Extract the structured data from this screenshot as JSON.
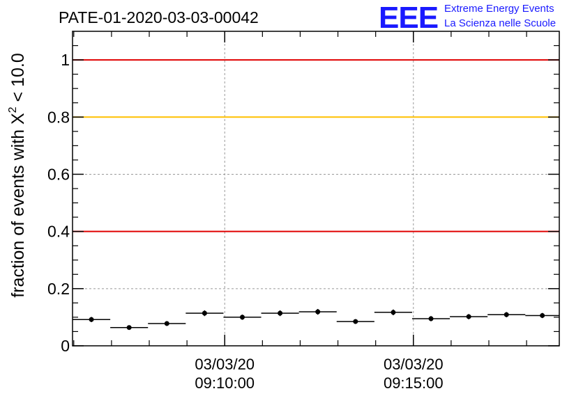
{
  "header": {
    "run_title": "PATE-01-2020-03-03-00042",
    "logo_text": "EEE",
    "org_line1": "Extreme Energy Events",
    "org_line2": "La Scienza nelle Scuole"
  },
  "colors": {
    "logo_blue": "#1a1aff",
    "threshold_red": "#e00000",
    "threshold_yellow": "#ffc000",
    "grid": "#999999",
    "data": "#000000"
  },
  "chart_data": {
    "type": "scatter",
    "title": "PATE-01-2020-03-03-00042",
    "ylabel_parts": {
      "prefix": "fraction of events with ",
      "symbol": "X",
      "sup": "2",
      "suffix": " < 10.0"
    },
    "xlabel": "",
    "ylim": [
      0,
      1.1
    ],
    "xlim": [
      "09:05:58",
      "09:18:52"
    ],
    "y_ticks": [
      {
        "value": 0,
        "label": "0"
      },
      {
        "value": 0.2,
        "label": "0.2"
      },
      {
        "value": 0.4,
        "label": "0.4"
      },
      {
        "value": 0.6,
        "label": "0.6"
      },
      {
        "value": 0.8,
        "label": "0.8"
      },
      {
        "value": 1,
        "label": "1"
      }
    ],
    "x_ticks": [
      {
        "time": "09:10:00",
        "date_label": "03/03/20",
        "time_label": "09:10:00"
      },
      {
        "time": "09:15:00",
        "date_label": "03/03/20",
        "time_label": "09:15:00"
      }
    ],
    "x_minor_tick_seconds": 60,
    "grid": true,
    "reference_lines": [
      {
        "y": 1.0,
        "color": "#e00000"
      },
      {
        "y": 0.8,
        "color": "#ffc000"
      },
      {
        "y": 0.4,
        "color": "#e00000"
      }
    ],
    "series": [
      {
        "points": [
          {
            "x_start": "09:05:58",
            "x_end": "09:06:58",
            "y": 0.092,
            "err": 0.009
          },
          {
            "x_start": "09:06:58",
            "x_end": "09:07:58",
            "y": 0.064,
            "err": 0.007
          },
          {
            "x_start": "09:07:58",
            "x_end": "09:08:58",
            "y": 0.078,
            "err": 0.008
          },
          {
            "x_start": "09:08:58",
            "x_end": "09:09:58",
            "y": 0.114,
            "err": 0.01
          },
          {
            "x_start": "09:09:58",
            "x_end": "09:10:58",
            "y": 0.1,
            "err": 0.009
          },
          {
            "x_start": "09:10:58",
            "x_end": "09:11:58",
            "y": 0.114,
            "err": 0.01
          },
          {
            "x_start": "09:11:58",
            "x_end": "09:12:58",
            "y": 0.119,
            "err": 0.01
          },
          {
            "x_start": "09:12:58",
            "x_end": "09:13:58",
            "y": 0.085,
            "err": 0.008
          },
          {
            "x_start": "09:13:58",
            "x_end": "09:14:58",
            "y": 0.117,
            "err": 0.01
          },
          {
            "x_start": "09:14:58",
            "x_end": "09:15:58",
            "y": 0.095,
            "err": 0.009
          },
          {
            "x_start": "09:15:58",
            "x_end": "09:16:58",
            "y": 0.102,
            "err": 0.009
          },
          {
            "x_start": "09:16:58",
            "x_end": "09:17:58",
            "y": 0.109,
            "err": 0.009
          },
          {
            "x_start": "09:17:58",
            "x_end": "09:18:52",
            "y": 0.106,
            "err": 0.009
          }
        ]
      }
    ]
  }
}
